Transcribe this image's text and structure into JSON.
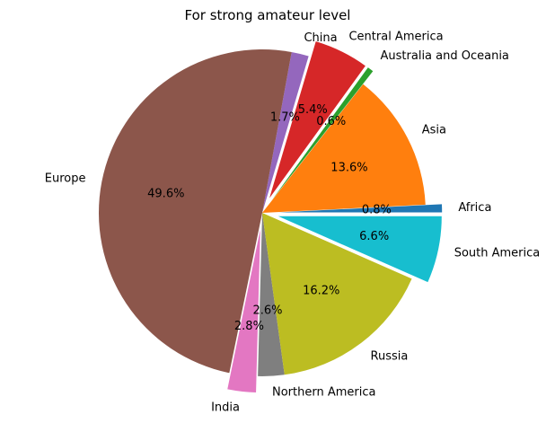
{
  "chart_data": {
    "type": "pie",
    "title": "For strong amateur level",
    "start_angle_deg": 0,
    "direction": "counterclockwise",
    "slices": [
      {
        "label": "Africa",
        "value": 0.8,
        "pct_label": "0.8%",
        "color": "#1f77b4",
        "explode": 0.1
      },
      {
        "label": "Asia",
        "value": 13.6,
        "pct_label": "13.6%",
        "color": "#ff7f0e",
        "explode": 0.0
      },
      {
        "label": "Australia and Oceania",
        "value": 0.6,
        "pct_label": "0.6%",
        "color": "#2ca02c",
        "explode": 0.1
      },
      {
        "label": "Central America",
        "value": 5.4,
        "pct_label": "5.4%",
        "color": "#d62728",
        "explode": 0.1
      },
      {
        "label": "China",
        "value": 1.7,
        "pct_label": "1.7%",
        "color": "#9467bd",
        "explode": 0.0
      },
      {
        "label": "Europe",
        "value": 49.6,
        "pct_label": "49.6%",
        "color": "#8c564b",
        "explode": 0.0
      },
      {
        "label": "India",
        "value": 2.8,
        "pct_label": "2.8%",
        "color": "#e377c2",
        "explode": 0.1
      },
      {
        "label": "Northern America",
        "value": 2.6,
        "pct_label": "2.6%",
        "color": "#7f7f7f",
        "explode": 0.0
      },
      {
        "label": "Russia",
        "value": 16.2,
        "pct_label": "16.2%",
        "color": "#bcbd22",
        "explode": 0.0
      },
      {
        "label": "South America",
        "value": 6.6,
        "pct_label": "6.6%",
        "color": "#17becf",
        "explode": 0.1
      }
    ]
  }
}
